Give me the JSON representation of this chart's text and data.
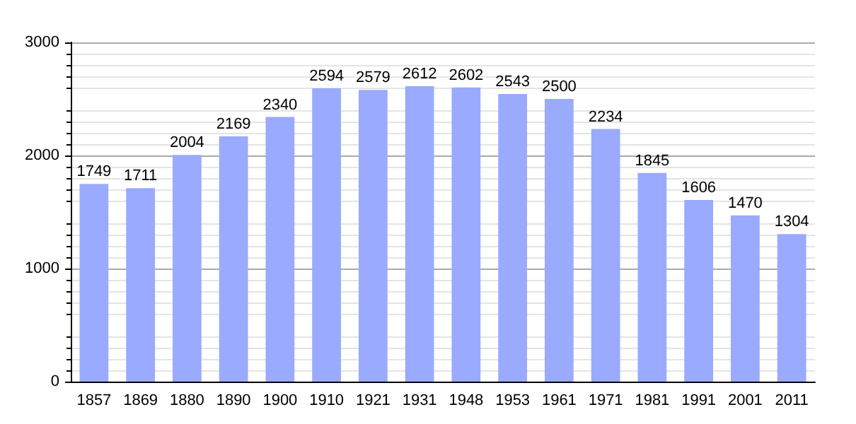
{
  "chart_data": {
    "type": "bar",
    "categories": [
      "1857",
      "1869",
      "1880",
      "1890",
      "1900",
      "1910",
      "1921",
      "1931",
      "1948",
      "1953",
      "1961",
      "1971",
      "1981",
      "1991",
      "2001",
      "2011"
    ],
    "values": [
      1749,
      1711,
      2004,
      2169,
      2340,
      2594,
      2579,
      2612,
      2602,
      2543,
      2500,
      2234,
      1845,
      1606,
      1470,
      1304
    ],
    "color": "#99aaff",
    "ylim": [
      0,
      3000
    ],
    "yticks": [
      0,
      1000,
      2000,
      3000
    ],
    "grid": "y",
    "data_labels": true
  }
}
